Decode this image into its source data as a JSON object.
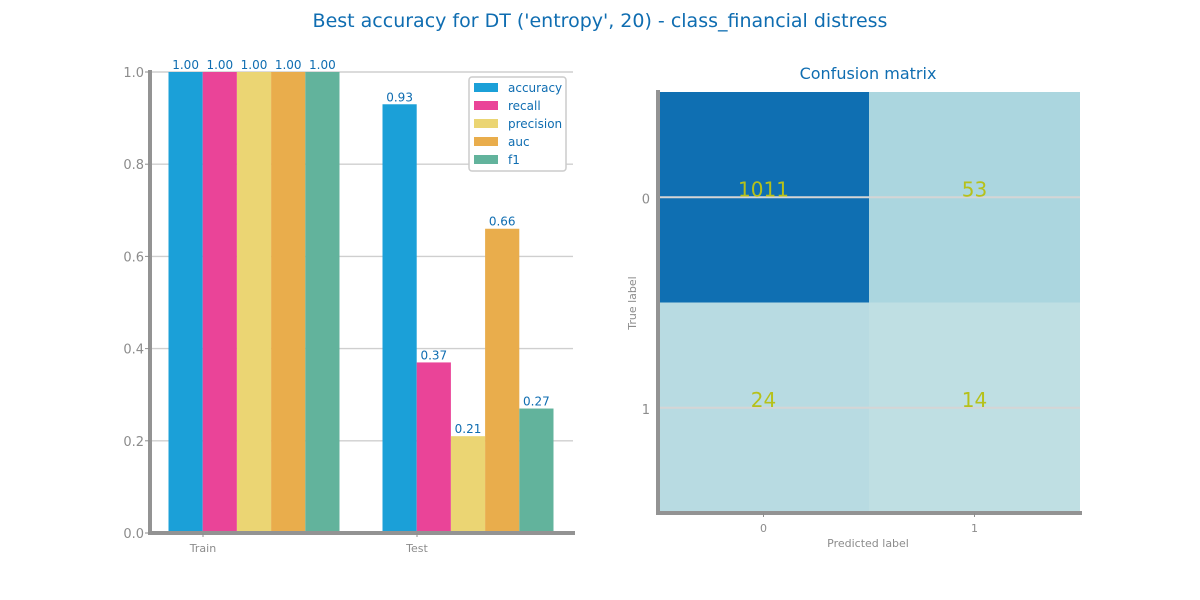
{
  "figure": {
    "title": "Best accuracy for DT ('entropy', 20) - class_financial distress"
  },
  "chart_data": [
    {
      "type": "bar",
      "title": "",
      "categories": [
        "Train",
        "Test"
      ],
      "series": [
        {
          "name": "accuracy",
          "color": "#1ba0d8",
          "values": [
            1.0,
            0.93
          ]
        },
        {
          "name": "recall",
          "color": "#ea4498",
          "values": [
            1.0,
            0.37
          ]
        },
        {
          "name": "precision",
          "color": "#ebd573",
          "values": [
            1.0,
            0.21
          ]
        },
        {
          "name": "auc",
          "color": "#e9ad4c",
          "values": [
            1.0,
            0.66
          ]
        },
        {
          "name": "f1",
          "color": "#62b39c",
          "values": [
            1.0,
            0.27
          ]
        }
      ],
      "data_labels": [
        [
          "1.00",
          "1.00",
          "1.00",
          "1.00",
          "1.00"
        ],
        [
          "0.93",
          "0.37",
          "0.21",
          "0.66",
          "0.27"
        ]
      ],
      "ylim": [
        0,
        1.0
      ],
      "yticks": [
        "0.0",
        "0.2",
        "0.4",
        "0.6",
        "0.8",
        "1.0"
      ],
      "grid": true,
      "legend_position": "top-right"
    },
    {
      "type": "heatmap",
      "title": "Confusion matrix",
      "xlabel": "Predicted label",
      "ylabel": "True label",
      "x_categories": [
        "0",
        "1"
      ],
      "y_categories": [
        "0",
        "1"
      ],
      "values": [
        [
          1011,
          53
        ],
        [
          24,
          14
        ]
      ],
      "cell_colors": [
        [
          "#0f6fb2",
          "#abd6df"
        ],
        [
          "#b8dbe2",
          "#bfdfe3"
        ]
      ],
      "text_color": "#b6c11a"
    }
  ]
}
